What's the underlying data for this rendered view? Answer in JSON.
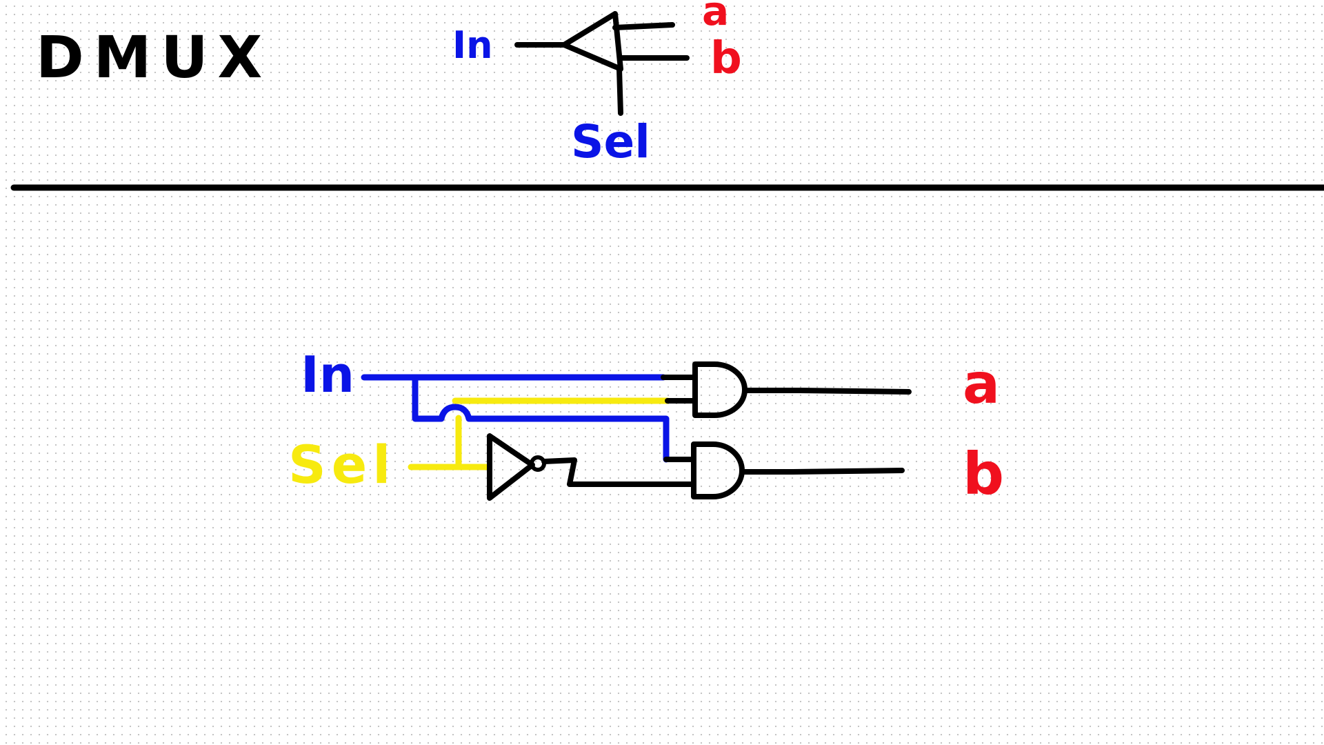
{
  "title": "DMUX",
  "symbol": {
    "input_label": "In",
    "output_a": "a",
    "output_b": "b",
    "select_label": "Sel"
  },
  "circuit": {
    "input_label": "In",
    "select_label": "Sel",
    "output_a": "a",
    "output_b": "b"
  },
  "colors": {
    "ink": "#000000",
    "in_wire": "#0a14e6",
    "sel_wire": "#f7ea0f",
    "outputs": "#f0101e"
  }
}
